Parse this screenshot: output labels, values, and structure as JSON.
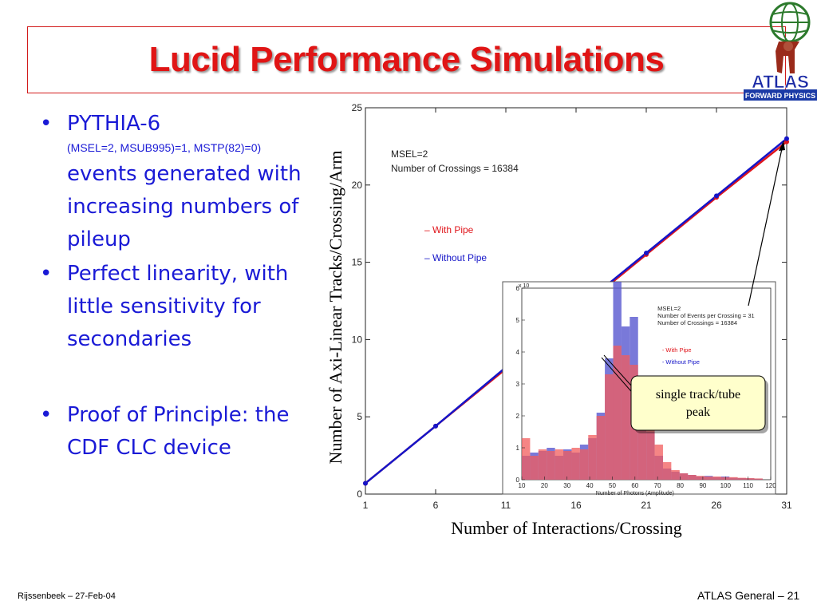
{
  "slide": {
    "title": "Lucid Performance Simulations",
    "logo_text": "ATLAS",
    "logo_subtext": "FORWARD PHYSICS",
    "bullets": [
      {
        "text": "PYTHIA-6",
        "sub": "(MSEL=2, MSUB995)=1, MSTP(82)=0)",
        "rest": "events generated with increasing numbers of pileup"
      },
      {
        "text": "Perfect linearity, with little sensitivity for secondaries"
      },
      {
        "text": "Proof of Principle: the CDF CLC device"
      }
    ],
    "footer_left": "Rijssenbeek – 27-Feb-04",
    "footer_right": "ATLAS General – 21",
    "callout": "single track/tube peak"
  },
  "chart_data": [
    {
      "type": "line",
      "xlabel": "Number of Interactions/Crossing",
      "ylabel": "Number of Axi-Linear Tracks/Crossing/Arm",
      "xlim": [
        1,
        31
      ],
      "ylim": [
        0,
        25
      ],
      "xticks": [
        1,
        6,
        11,
        16,
        21,
        26,
        31
      ],
      "yticks": [
        0,
        5,
        10,
        15,
        20,
        25
      ],
      "annotations": [
        "MSEL=2",
        "Number of Crossings = 16384"
      ],
      "x": [
        1,
        6,
        11,
        16,
        21,
        26,
        31
      ],
      "series": [
        {
          "name": "With Pipe",
          "color": "#e0151b",
          "values": [
            0.7,
            4.4,
            8.1,
            11.8,
            15.5,
            19.2,
            22.8
          ]
        },
        {
          "name": "Without Pipe",
          "color": "#1515c8",
          "values": [
            0.7,
            4.4,
            8.2,
            11.9,
            15.6,
            19.3,
            23.0
          ]
        }
      ],
      "legend": "left",
      "grid": false
    },
    {
      "type": "bar",
      "inset": true,
      "xlabel": "Number of Photons (Amplitude)",
      "ylabel_multiplier": "x 10",
      "xlim": [
        10,
        120
      ],
      "ylim": [
        0,
        6
      ],
      "xticks": [
        10,
        20,
        30,
        40,
        50,
        60,
        70,
        80,
        90,
        100,
        110,
        120
      ],
      "yticks": [
        0,
        1,
        2,
        3,
        4,
        5,
        6
      ],
      "annotations": [
        "MSEL=2",
        "Number of Events per Crossing = 31",
        "Number of Crossings = 16384"
      ],
      "bin_width": 3.67,
      "bin_edges_start": 10,
      "series": [
        {
          "name": "With Pipe",
          "color": "#f25c5c",
          "values": [
            1.3,
            0.75,
            0.95,
            0.9,
            0.95,
            0.9,
            1.0,
            0.95,
            1.4,
            2.0,
            3.3,
            4.2,
            3.9,
            3.6,
            3.2,
            2.1,
            1.1,
            0.55,
            0.3,
            0.2,
            0.15,
            0.12,
            0.1,
            0.1,
            0.08,
            0.08,
            0.06,
            0.05,
            0.04,
            0.03
          ]
        },
        {
          "name": "Without Pipe",
          "color": "#5858d0",
          "values": [
            0.75,
            0.85,
            0.9,
            1.0,
            0.75,
            0.95,
            0.85,
            1.1,
            1.3,
            2.1,
            3.8,
            6.2,
            4.8,
            5.1,
            3.1,
            1.5,
            0.75,
            0.35,
            0.25,
            0.2,
            0.15,
            0.1,
            0.12,
            0.08,
            0.1,
            0.06,
            0.05,
            0.04,
            0.03,
            0.02
          ]
        }
      ]
    }
  ]
}
